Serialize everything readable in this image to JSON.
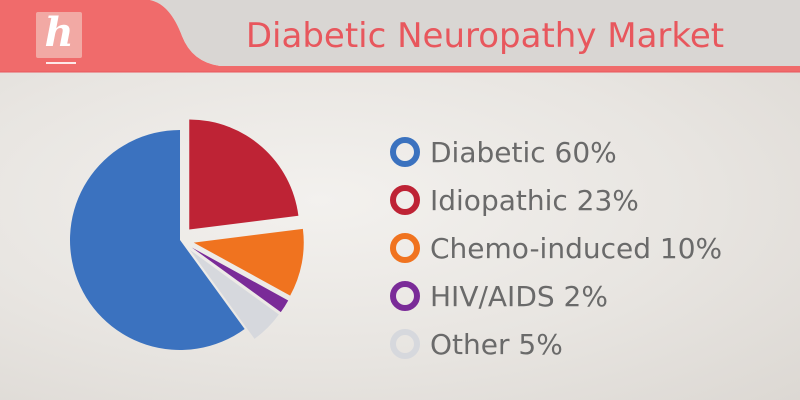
{
  "header": {
    "logo_letter": "h",
    "title": "Diabetic Neuropathy Market",
    "banner_color": "#f06b6b",
    "title_panel_color": "#d9d6d3",
    "title_color": "#e8575d"
  },
  "chart_data": {
    "type": "pie",
    "title": "Diabetic Neuropathy Market",
    "exploded": true,
    "legend_position": "right",
    "slices": [
      {
        "name": "Diabetic",
        "label": "Diabetic 60%",
        "value": 60,
        "color": "#3b72bf"
      },
      {
        "name": "Idiopathic",
        "label": "Idiopathic 23%",
        "value": 23,
        "color": "#be2335"
      },
      {
        "name": "Chemo-induced",
        "label": "Chemo-induced 10%",
        "value": 10,
        "color": "#f0731f"
      },
      {
        "name": "HIV/AIDS",
        "label": "HIV/AIDS 2%",
        "value": 2,
        "color": "#7a2b98"
      },
      {
        "name": "Other",
        "label": "Other 5%",
        "value": 5,
        "color": "#d6d8dd"
      }
    ]
  }
}
